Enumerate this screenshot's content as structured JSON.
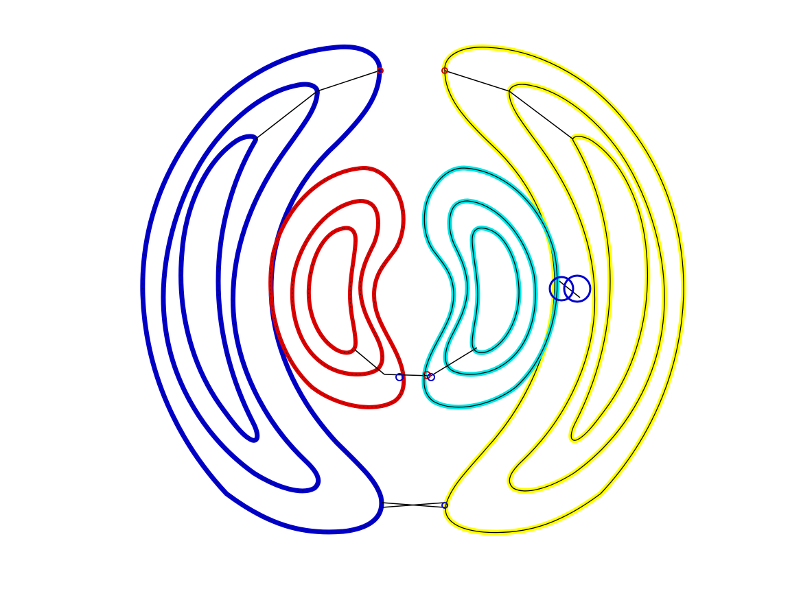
{
  "figure": {
    "background": "#ffffff",
    "groups": [
      {
        "name": "blue-arcs",
        "color": "#0000c8",
        "contour_count": 3
      },
      {
        "name": "red-rings",
        "color": "#dd0000",
        "contour_count": 3
      },
      {
        "name": "cyan-rings",
        "color": "#00e5e5",
        "contour_count": 3
      },
      {
        "name": "yellow-arcs",
        "color": "#ffff00",
        "contour_count": 3
      }
    ],
    "connector_color": "#000000",
    "marker_colors": {
      "blue": "#0000cc",
      "red": "#cc0000"
    }
  }
}
